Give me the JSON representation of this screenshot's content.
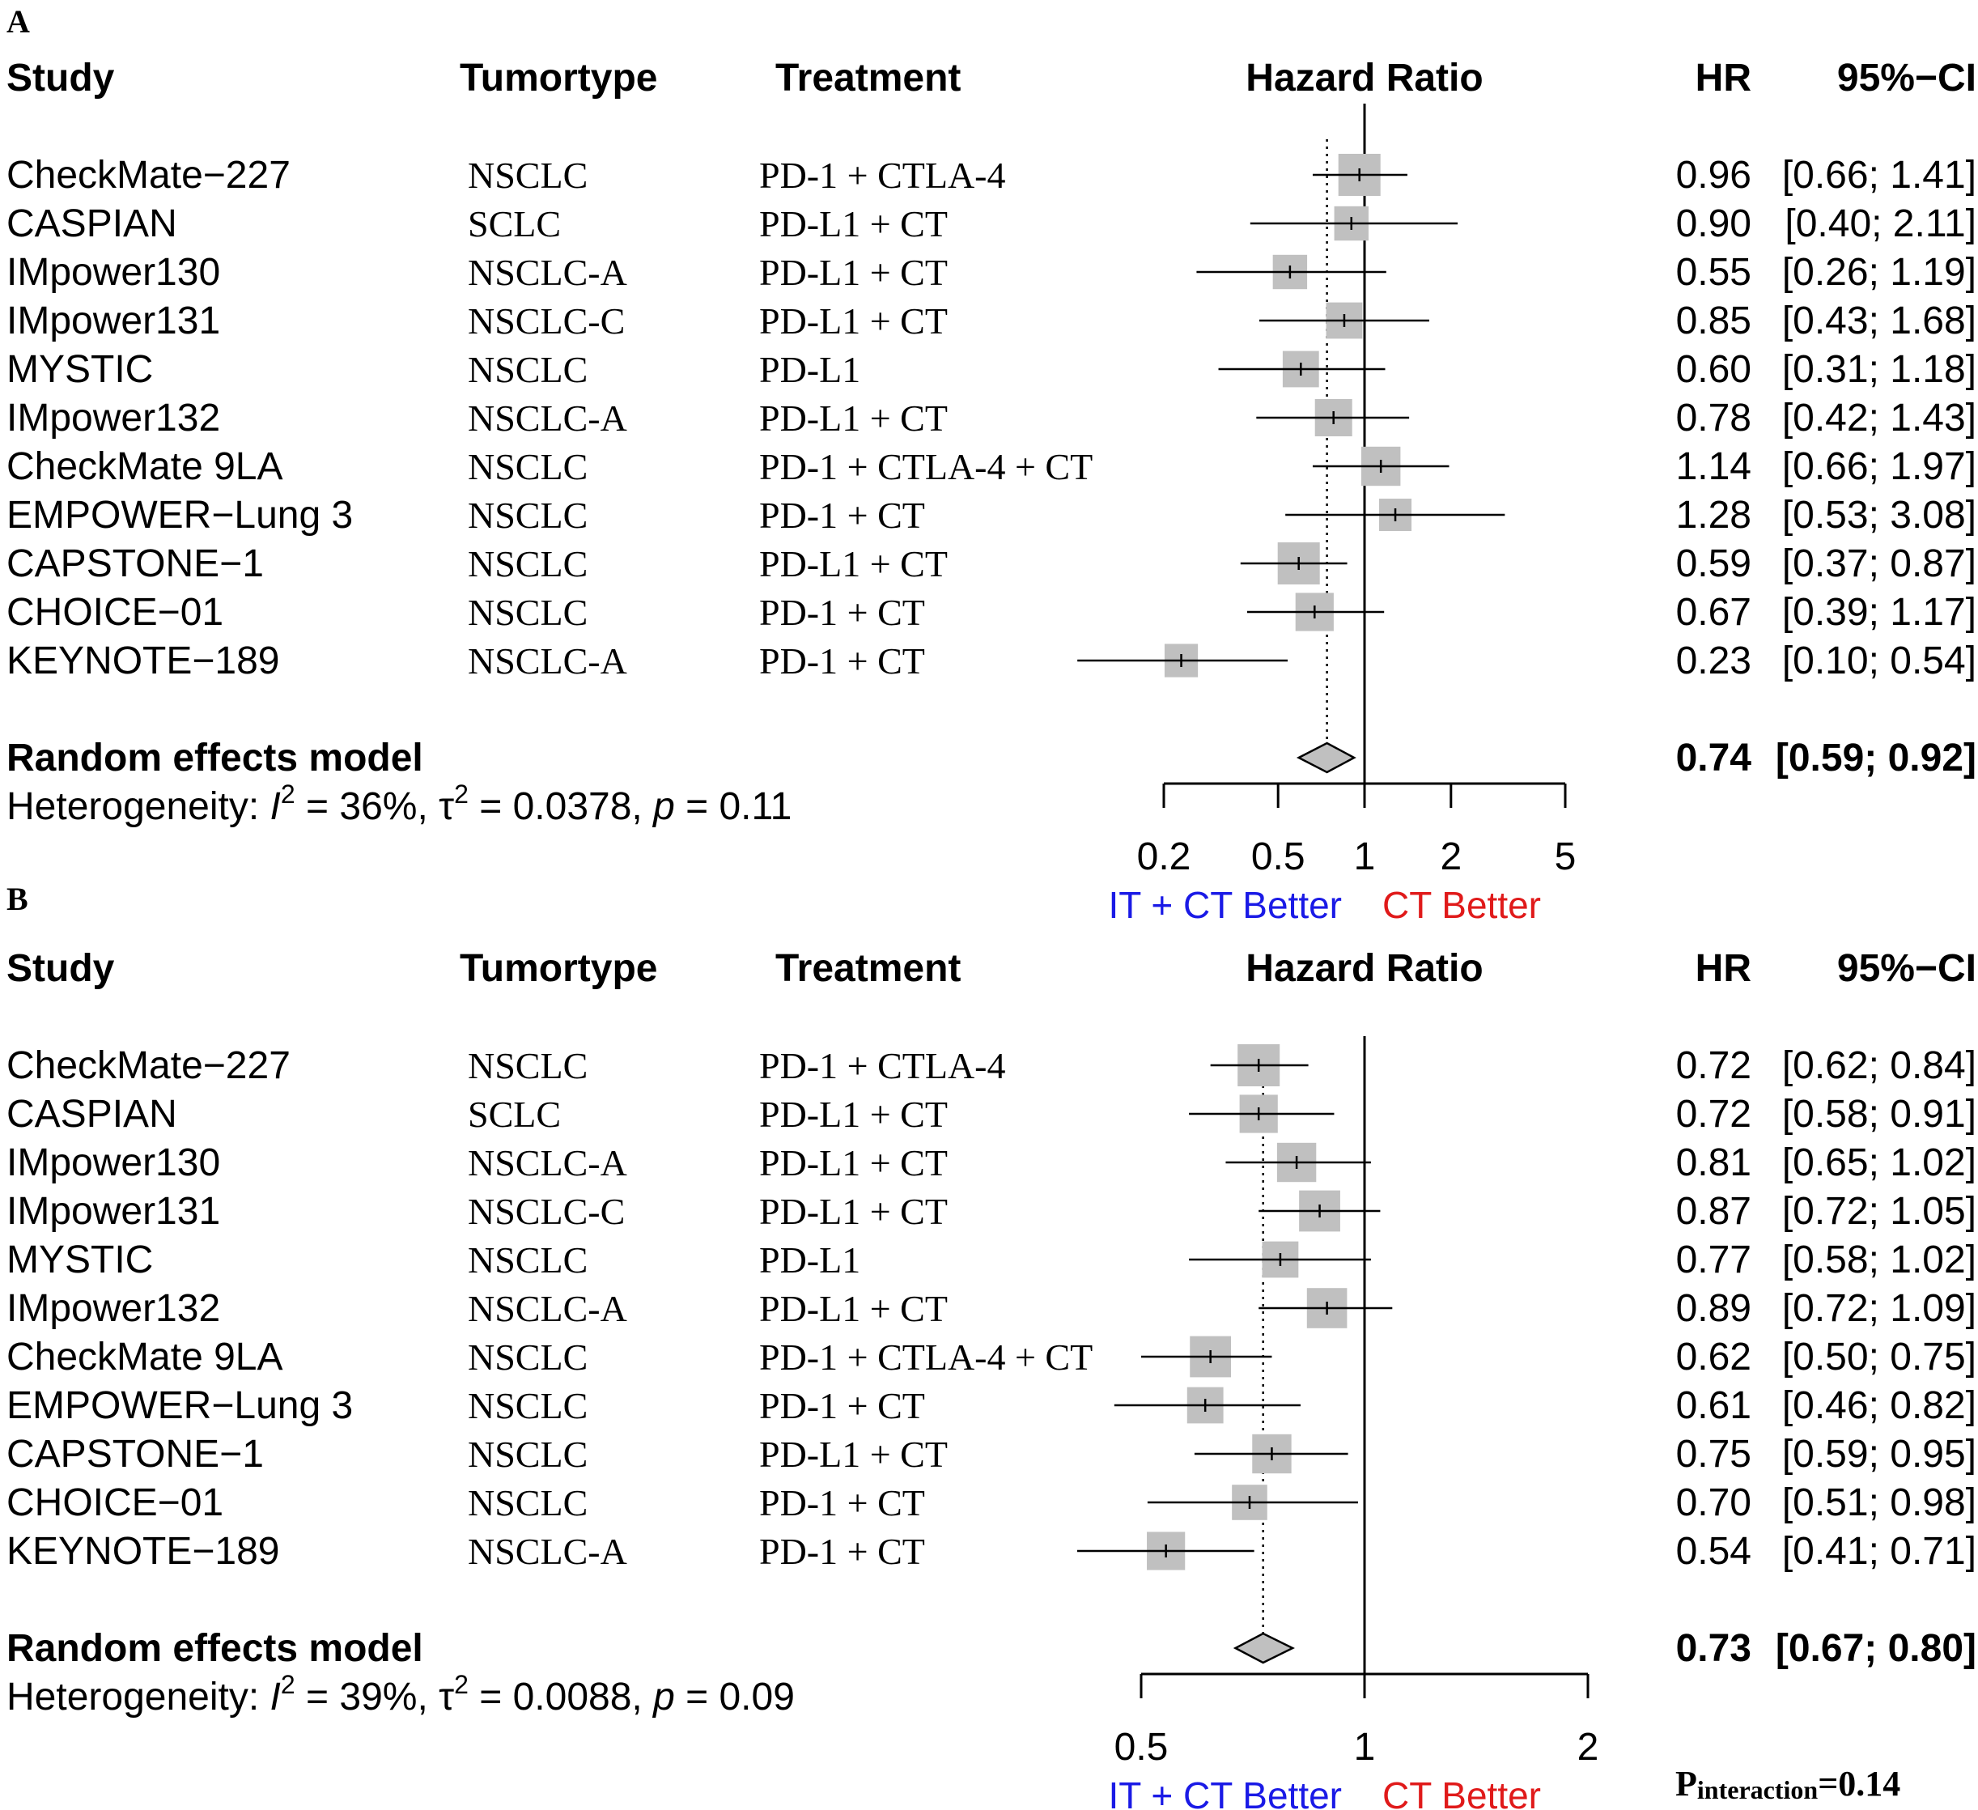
{
  "colors": {
    "box": "#c0c0c0",
    "line": "#000000",
    "diamond_fill": "#c0c0c0",
    "favor_left": "#1a1ae6",
    "favor_right": "#e01a1a"
  },
  "pinteraction": {
    "main": "P",
    "sub": "interaction",
    "eq": "=0.14"
  },
  "chart_data": [
    {
      "panel": "A",
      "type": "forest",
      "scale": "log",
      "headers": {
        "study": "Study",
        "tumortype": "Tumortype",
        "treatment": "Treatment",
        "plot": "Hazard Ratio",
        "hr": "HR",
        "ci": "95%−CI"
      },
      "rows": [
        {
          "study": "CheckMate−227",
          "tumortype": "NSCLC",
          "treatment": "PD-1 + CTLA-4",
          "hr": 0.96,
          "lo": 0.66,
          "hi": 1.41,
          "hr_text": "0.96",
          "ci_text": "[0.66; 1.41]",
          "weight": 1.0
        },
        {
          "study": "CASPIAN",
          "tumortype": "SCLC",
          "treatment": "PD-L1 + CT",
          "hr": 0.9,
          "lo": 0.4,
          "hi": 2.11,
          "hr_text": "0.90",
          "ci_text": "[0.40; 2.11]",
          "weight": 0.6
        },
        {
          "study": "IMpower130",
          "tumortype": "NSCLC-A",
          "treatment": "PD-L1 + CT",
          "hr": 0.55,
          "lo": 0.26,
          "hi": 1.19,
          "hr_text": "0.55",
          "ci_text": "[0.26; 1.19]",
          "weight": 0.6
        },
        {
          "study": "IMpower131",
          "tumortype": "NSCLC-C",
          "treatment": "PD-L1 + CT",
          "hr": 0.85,
          "lo": 0.43,
          "hi": 1.68,
          "hr_text": "0.85",
          "ci_text": "[0.43; 1.68]",
          "weight": 0.7
        },
        {
          "study": "MYSTIC",
          "tumortype": "NSCLC",
          "treatment": "PD-L1",
          "hr": 0.6,
          "lo": 0.31,
          "hi": 1.18,
          "hr_text": "0.60",
          "ci_text": "[0.31; 1.18]",
          "weight": 0.7
        },
        {
          "study": "IMpower132",
          "tumortype": "NSCLC-A",
          "treatment": "PD-L1 + CT",
          "hr": 0.78,
          "lo": 0.42,
          "hi": 1.43,
          "hr_text": "0.78",
          "ci_text": "[0.42; 1.43]",
          "weight": 0.75
        },
        {
          "study": "CheckMate 9LA",
          "tumortype": "NSCLC",
          "treatment": "PD-1 + CTLA-4 + CT",
          "hr": 1.14,
          "lo": 0.66,
          "hi": 1.97,
          "hr_text": "1.14",
          "ci_text": "[0.66; 1.97]",
          "weight": 0.85
        },
        {
          "study": "EMPOWER−Lung 3",
          "tumortype": "NSCLC",
          "treatment": "PD-1 + CT",
          "hr": 1.28,
          "lo": 0.53,
          "hi": 3.08,
          "hr_text": "1.28",
          "ci_text": "[0.53; 3.08]",
          "weight": 0.5
        },
        {
          "study": "CAPSTONE−1",
          "tumortype": "NSCLC",
          "treatment": "PD-L1 + CT",
          "hr": 0.59,
          "lo": 0.37,
          "hi": 0.87,
          "hr_text": "0.59",
          "ci_text": "[0.37; 0.87]",
          "weight": 1.0
        },
        {
          "study": "CHOICE−01",
          "tumortype": "NSCLC",
          "treatment": "PD-1 + CT",
          "hr": 0.67,
          "lo": 0.39,
          "hi": 1.17,
          "hr_text": "0.67",
          "ci_text": "[0.39; 1.17]",
          "weight": 0.8
        },
        {
          "study": "KEYNOTE−189",
          "tumortype": "NSCLC-A",
          "treatment": "PD-1 + CT",
          "hr": 0.23,
          "lo": 0.1,
          "hi": 0.54,
          "hr_text": "0.23",
          "ci_text": "[0.10; 0.54]",
          "weight": 0.55
        }
      ],
      "summary": {
        "label": "Random effects model",
        "hr": 0.74,
        "lo": 0.59,
        "hi": 0.92,
        "hr_text": "0.74",
        "ci_text": "[0.59; 0.92]"
      },
      "heterogeneity": {
        "prefix": "Heterogeneity: ",
        "i2_sym": "I",
        "i2_exp": "2",
        "i2_val": " = 36%, ",
        "tau_sym": "τ",
        "tau_exp": "2",
        "tau_val": " = 0.0378, ",
        "p_sym": "p",
        "p_val": " = 0.11"
      },
      "axis": {
        "ticks": [
          0.2,
          0.5,
          1,
          2,
          5
        ],
        "tick_labels": [
          "0.2",
          "0.5",
          "1",
          "2",
          "5"
        ],
        "range": [
          0.2,
          5
        ],
        "null_value": 1
      },
      "favor_left": "IT + CT Better",
      "favor_right": "CT Better"
    },
    {
      "panel": "B",
      "type": "forest",
      "scale": "log",
      "headers": {
        "study": "Study",
        "tumortype": "Tumortype",
        "treatment": "Treatment",
        "plot": "Hazard Ratio",
        "hr": "HR",
        "ci": "95%−CI"
      },
      "rows": [
        {
          "study": "CheckMate−227",
          "tumortype": "NSCLC",
          "treatment": "PD-1 + CTLA-4",
          "hr": 0.72,
          "lo": 0.62,
          "hi": 0.84,
          "hr_text": "0.72",
          "ci_text": "[0.62; 0.84]",
          "weight": 1.0
        },
        {
          "study": "CASPIAN",
          "tumortype": "SCLC",
          "treatment": "PD-L1 + CT",
          "hr": 0.72,
          "lo": 0.58,
          "hi": 0.91,
          "hr_text": "0.72",
          "ci_text": "[0.58; 0.91]",
          "weight": 0.8
        },
        {
          "study": "IMpower130",
          "tumortype": "NSCLC-A",
          "treatment": "PD-L1 + CT",
          "hr": 0.81,
          "lo": 0.65,
          "hi": 1.02,
          "hr_text": "0.81",
          "ci_text": "[0.65; 1.02]",
          "weight": 0.85
        },
        {
          "study": "IMpower131",
          "tumortype": "NSCLC-C",
          "treatment": "PD-L1 + CT",
          "hr": 0.87,
          "lo": 0.72,
          "hi": 1.05,
          "hr_text": "0.87",
          "ci_text": "[0.72; 1.05]",
          "weight": 0.95
        },
        {
          "study": "MYSTIC",
          "tumortype": "NSCLC",
          "treatment": "PD-L1",
          "hr": 0.77,
          "lo": 0.58,
          "hi": 1.02,
          "hr_text": "0.77",
          "ci_text": "[0.58; 1.02]",
          "weight": 0.7
        },
        {
          "study": "IMpower132",
          "tumortype": "NSCLC-A",
          "treatment": "PD-L1 + CT",
          "hr": 0.89,
          "lo": 0.72,
          "hi": 1.09,
          "hr_text": "0.89",
          "ci_text": "[0.72; 1.09]",
          "weight": 0.9
        },
        {
          "study": "CheckMate 9LA",
          "tumortype": "NSCLC",
          "treatment": "PD-1 + CTLA-4 + CT",
          "hr": 0.62,
          "lo": 0.5,
          "hi": 0.75,
          "hr_text": "0.62",
          "ci_text": "[0.50; 0.75]",
          "weight": 0.95
        },
        {
          "study": "EMPOWER−Lung 3",
          "tumortype": "NSCLC",
          "treatment": "PD-1 + CT",
          "hr": 0.61,
          "lo": 0.46,
          "hi": 0.82,
          "hr_text": "0.61",
          "ci_text": "[0.46; 0.82]",
          "weight": 0.7
        },
        {
          "study": "CAPSTONE−1",
          "tumortype": "NSCLC",
          "treatment": "PD-L1 + CT",
          "hr": 0.75,
          "lo": 0.59,
          "hi": 0.95,
          "hr_text": "0.75",
          "ci_text": "[0.59; 0.95]",
          "weight": 0.85
        },
        {
          "study": "CHOICE−01",
          "tumortype": "NSCLC",
          "treatment": "PD-1 + CT",
          "hr": 0.7,
          "lo": 0.51,
          "hi": 0.98,
          "hr_text": "0.70",
          "ci_text": "[0.51; 0.98]",
          "weight": 0.65
        },
        {
          "study": "KEYNOTE−189",
          "tumortype": "NSCLC-A",
          "treatment": "PD-1 + CT",
          "hr": 0.54,
          "lo": 0.41,
          "hi": 0.71,
          "hr_text": "0.54",
          "ci_text": "[0.41; 0.71]",
          "weight": 0.8
        }
      ],
      "summary": {
        "label": "Random effects model",
        "hr": 0.73,
        "lo": 0.67,
        "hi": 0.8,
        "hr_text": "0.73",
        "ci_text": "[0.67; 0.80]"
      },
      "heterogeneity": {
        "prefix": "Heterogeneity: ",
        "i2_sym": "I",
        "i2_exp": "2",
        "i2_val": " = 39%, ",
        "tau_sym": "τ",
        "tau_exp": "2",
        "tau_val": " = 0.0088, ",
        "p_sym": "p",
        "p_val": " = 0.09"
      },
      "axis": {
        "ticks": [
          0.5,
          1,
          2
        ],
        "tick_labels": [
          "0.5",
          "1",
          "2"
        ],
        "range": [
          0.5,
          2
        ],
        "null_value": 1
      },
      "favor_left": "IT + CT Better",
      "favor_right": "CT Better"
    }
  ]
}
